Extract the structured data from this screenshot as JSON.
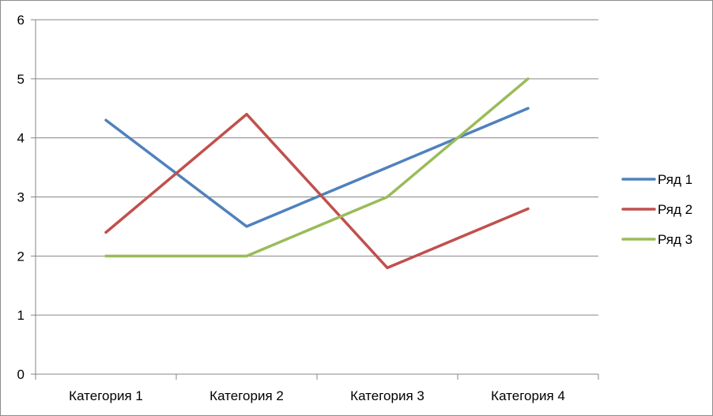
{
  "chart_data": {
    "type": "line",
    "categories": [
      "Категория 1",
      "Категория 2",
      "Категория 3",
      "Категория 4"
    ],
    "series": [
      {
        "name": "Ряд 1",
        "values": [
          4.3,
          2.5,
          3.5,
          4.5
        ],
        "color": "#4f81bd"
      },
      {
        "name": "Ряд 2",
        "values": [
          2.4,
          4.4,
          1.8,
          2.8
        ],
        "color": "#c0504d"
      },
      {
        "name": "Ряд 3",
        "values": [
          2.0,
          2.0,
          3.0,
          5.0
        ],
        "color": "#9bbb59"
      }
    ],
    "ylim": [
      0,
      6
    ],
    "yticks": [
      "0",
      "1",
      "2",
      "3",
      "4",
      "5",
      "6"
    ],
    "grid": "horizontal",
    "legend_position": "right"
  }
}
